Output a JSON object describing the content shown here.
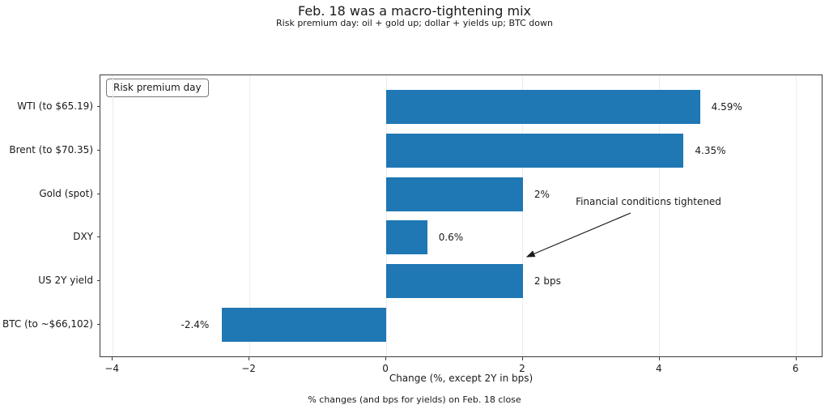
{
  "chart_data": {
    "type": "bar",
    "orientation": "horizontal",
    "title": "Feb. 18 was a macro-tightening mix",
    "subtitle": "Risk premium day: oil + gold up; dollar + yields up; BTC down",
    "categories": [
      "WTI (to $65.19)",
      "Brent (to $70.35)",
      "Gold (spot)",
      "DXY",
      "US 2Y yield",
      "BTC (to ~$66,102)"
    ],
    "values": [
      4.59,
      4.35,
      2,
      0.6,
      2,
      -2.4
    ],
    "value_labels": [
      "4.59%",
      "4.35%",
      "2%",
      "0.6%",
      "2 bps",
      "-2.4%"
    ],
    "xlabel": "Change (%, except 2Y in bps)",
    "xlim": [
      -4.18,
      6.37
    ],
    "xticks": [
      {
        "value": -4,
        "label": "−4"
      },
      {
        "value": -2,
        "label": "−2"
      },
      {
        "value": 0,
        "label": "0"
      },
      {
        "value": 2,
        "label": "2"
      },
      {
        "value": 4,
        "label": "4"
      },
      {
        "value": 6,
        "label": "6"
      }
    ],
    "grid": true,
    "legend": "Risk premium day",
    "legend_position": "upper left",
    "annotation": {
      "text": "Financial conditions tightened"
    },
    "footnote": "% changes (and bps for yields) on Feb. 18 close",
    "bar_color": "#1f77b4"
  },
  "colors": {
    "bar": "#1f77b4",
    "text": "#1a1a1a",
    "gridline": "#ececec",
    "frame": "#3c3c3c"
  }
}
